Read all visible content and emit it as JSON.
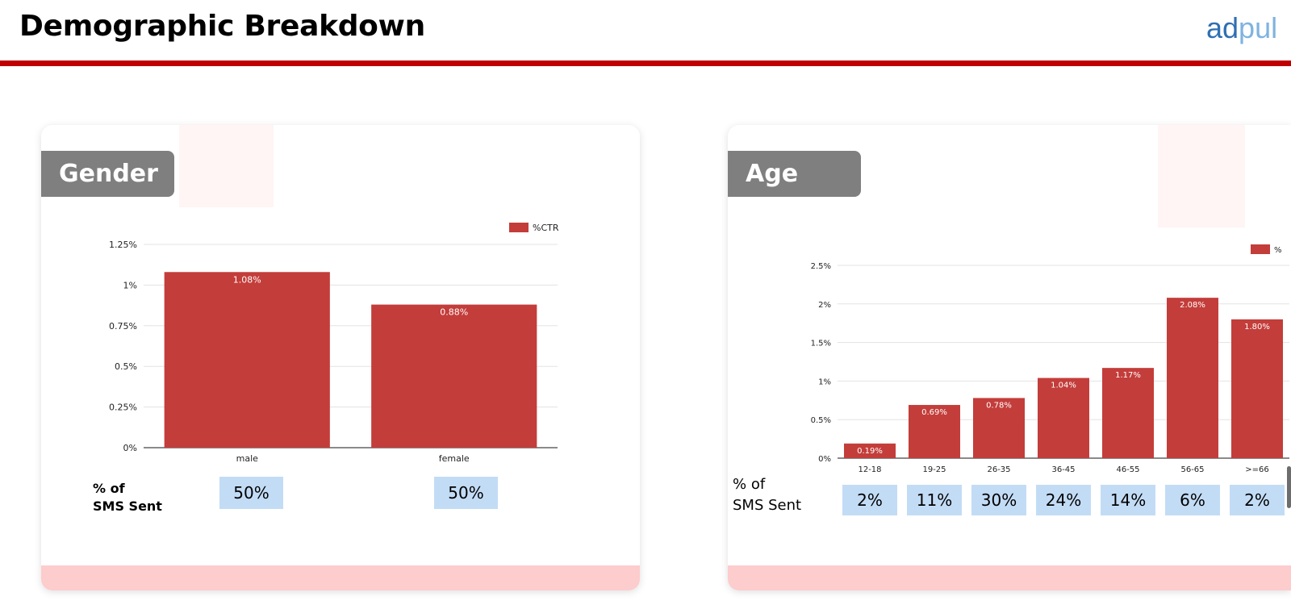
{
  "header": {
    "title": "Demographic Breakdown",
    "logo_part1": "ad",
    "logo_part2": "pul"
  },
  "colors": {
    "accent_red": "#c00000",
    "bar_red": "#c33d3a",
    "tag_gray": "#7f7f7f",
    "sms_box_blue": "#c3dcf6",
    "card_footer_pink": "#fdcccd"
  },
  "gender": {
    "tag_label": "Gender",
    "sms_label_line1": "% of",
    "sms_label_line2": "SMS Sent",
    "sms_values": [
      "50%",
      "50%"
    ]
  },
  "age": {
    "tag_label": "Age",
    "sms_label_line1": "% of",
    "sms_label_line2": "SMS Sent",
    "sms_values": [
      "2%",
      "11%",
      "30%",
      "24%",
      "14%",
      "6%",
      "2%"
    ]
  },
  "chart_data": [
    {
      "type": "bar",
      "title": "",
      "xlabel": "",
      "ylabel": "",
      "categories": [
        "male",
        "female"
      ],
      "series": [
        {
          "name": "%CTR",
          "values": [
            1.08,
            0.88
          ],
          "labels": [
            "1.08%",
            "0.88%"
          ]
        }
      ],
      "ylim": [
        0,
        1.25
      ],
      "yticks": [
        0,
        0.25,
        0.5,
        0.75,
        1,
        1.25
      ],
      "ytick_labels": [
        "0%",
        "0.25%",
        "0.5%",
        "0.75%",
        "1%",
        "1.25%"
      ],
      "grid": true,
      "legend": "top-right"
    },
    {
      "type": "bar",
      "title": "",
      "xlabel": "",
      "ylabel": "",
      "categories": [
        "12-18",
        "19-25",
        "26-35",
        "36-45",
        "46-55",
        "56-65",
        ">=66"
      ],
      "series": [
        {
          "name": "%",
          "values": [
            0.19,
            0.69,
            0.78,
            1.04,
            1.17,
            2.08,
            1.8
          ],
          "labels": [
            "0.19%",
            "0.69%",
            "0.78%",
            "1.04%",
            "1.17%",
            "2.08%",
            "1.80%"
          ]
        }
      ],
      "ylim": [
        0,
        2.5
      ],
      "yticks": [
        0,
        0.5,
        1,
        1.5,
        2,
        2.5
      ],
      "ytick_labels": [
        "0%",
        "0.5%",
        "1%",
        "1.5%",
        "2%",
        "2.5%"
      ],
      "grid": true,
      "legend": "top-right"
    }
  ]
}
